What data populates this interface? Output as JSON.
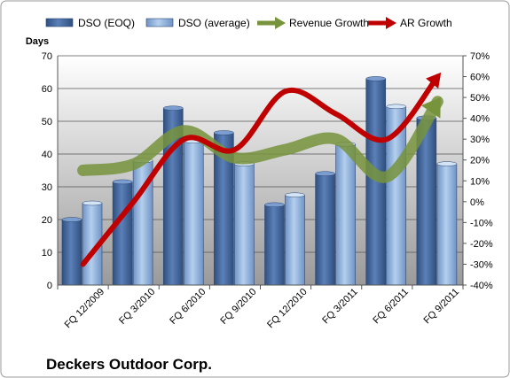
{
  "chart_data": {
    "type": "bar",
    "title": "Deckers Outdoor Corp.",
    "categories": [
      "FQ 12/2009",
      "FQ 3/2010",
      "FQ 6/2010",
      "FQ 9/2010",
      "FQ 12/2010",
      "FQ 3/2011",
      "FQ 6/2011",
      "FQ 9/2011"
    ],
    "ylabel": "Days",
    "ylim": [
      0,
      70
    ],
    "y_ticks": [
      "0",
      "10",
      "20",
      "30",
      "40",
      "50",
      "60",
      "70"
    ],
    "y2lim": [
      -40,
      70
    ],
    "y2_ticks": [
      "-40%",
      "-30%",
      "-20%",
      "-10%",
      "0%",
      "10%",
      "20%",
      "30%",
      "40%",
      "50%",
      "60%",
      "70%"
    ],
    "grid": true,
    "legend_position": "top",
    "series": [
      {
        "name": "DSO (EOQ)",
        "type": "bar",
        "axis": "left",
        "color": "#4a6fa5",
        "values": [
          20,
          31.5,
          54,
          46.5,
          24.5,
          34,
          63,
          51
        ]
      },
      {
        "name": "DSO (average)",
        "type": "bar",
        "axis": "left",
        "color": "#8db3e2",
        "values": [
          25,
          38,
          44,
          37,
          27.5,
          43,
          54.5,
          37
        ]
      },
      {
        "name": "Revenue Growth",
        "type": "line",
        "axis": "right",
        "unit": "%",
        "color": "#77933c",
        "values": [
          15,
          18,
          34,
          21,
          25,
          30,
          12,
          48
        ]
      },
      {
        "name": "AR Growth",
        "type": "line",
        "axis": "right",
        "unit": "%",
        "color": "#c00000",
        "values": [
          -30,
          0,
          30,
          25,
          53,
          42,
          30,
          60
        ]
      }
    ]
  }
}
